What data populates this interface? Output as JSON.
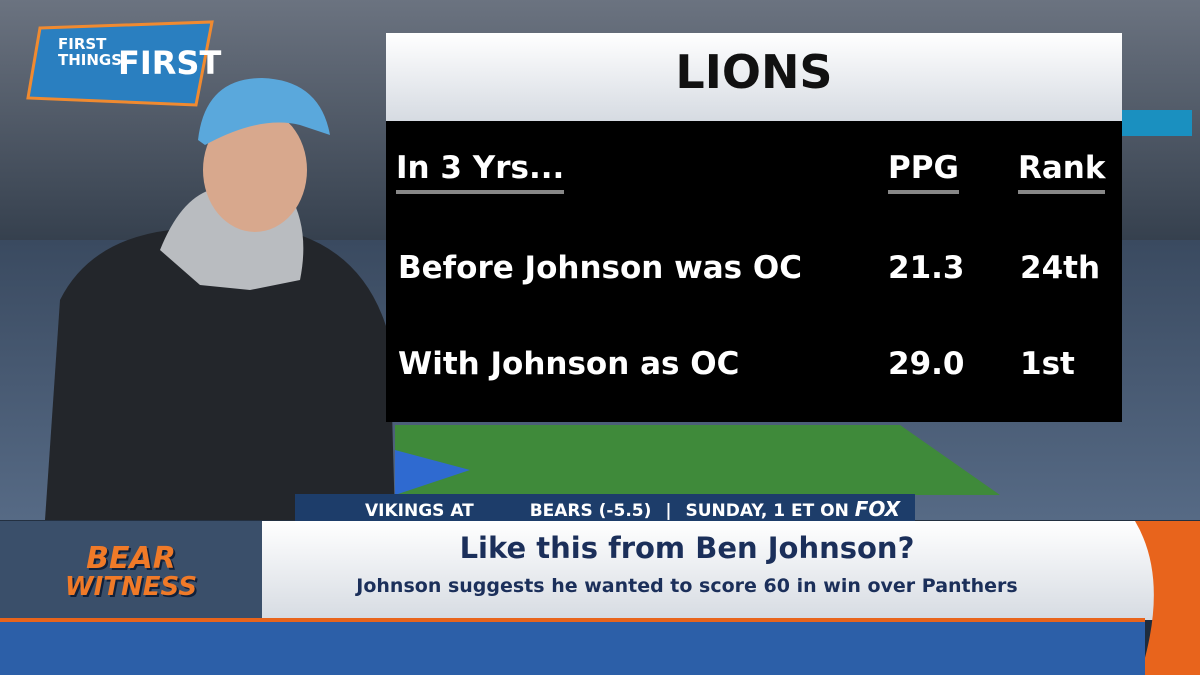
{
  "logo": {
    "line1": "FIRST",
    "line2": "THINGS",
    "line3": "FIRST"
  },
  "panel": {
    "title": "LIONS",
    "columns": [
      "In 3 Yrs...",
      "PPG",
      "Rank"
    ],
    "rows": [
      [
        "Before Johnson was OC",
        "21.3",
        "24th"
      ],
      [
        "With Johnson as OC",
        "29.0",
        "1st"
      ]
    ]
  },
  "ticker": {
    "matchup_start": "VIKINGS AT",
    "matchup_end": "BEARS (-5.5)",
    "time": "SUNDAY, 1 ET ON",
    "network": "FOX"
  },
  "segment": {
    "line1": "BEAR",
    "line2": "WITNESS"
  },
  "lower_third": {
    "headline": "Like this from Ben Johnson?",
    "subheadline": "Johnson suggests he wanted to score 60 in win over Panthers"
  }
}
